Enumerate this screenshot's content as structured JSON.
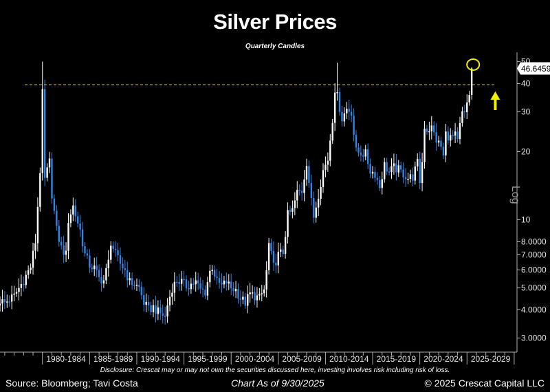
{
  "colors": {
    "background": "#000000",
    "up_candle": "#ffffff",
    "down_candle": "#2e86e8",
    "threshold_line": "#e8e400",
    "highlight": "#f2ee00",
    "axis": "#b0b0b0",
    "last_label_bg": "#ffffff"
  },
  "header": {
    "title": "Silver Prices",
    "subtitle": "Quarterly Candles"
  },
  "footer": {
    "disclosure": "Disclosure: Crescat may or may not own the securities discussed here, investing involves risk including risk of loss.",
    "source": "Source: Bloomberg; Tavi Costa",
    "as_of": "Chart As of 9/30/2025",
    "copyright": "© 2025 Crescat Capital LLC"
  },
  "chart_data": {
    "type": "candlestick",
    "title": "Silver Prices",
    "subtitle": "Quarterly Candles",
    "y_scale": "log",
    "y_axis_label": "Log",
    "ylim": [
      2.6,
      52
    ],
    "y_ticks": [
      {
        "value": 50,
        "label": "50"
      },
      {
        "value": 40,
        "label": "40"
      },
      {
        "value": 30,
        "label": "30"
      },
      {
        "value": 20,
        "label": "20"
      },
      {
        "value": 10,
        "label": "10"
      },
      {
        "value": 8,
        "label": "8.0000"
      },
      {
        "value": 7,
        "label": "7.0000"
      },
      {
        "value": 6,
        "label": "6.0000"
      },
      {
        "value": 5,
        "label": "5.0000"
      },
      {
        "value": 4,
        "label": "4.0000"
      },
      {
        "value": 3,
        "label": "3.0000"
      }
    ],
    "x_range": [
      1975.5,
      2030.3
    ],
    "x_period_labels": [
      {
        "start": 1980,
        "label": "1980-1984"
      },
      {
        "start": 1985,
        "label": "1985-1989"
      },
      {
        "start": 1990,
        "label": "1990-1994"
      },
      {
        "start": 1995,
        "label": "1995-1999"
      },
      {
        "start": 2000,
        "label": "2000-2004"
      },
      {
        "start": 2005,
        "label": "2005-2009"
      },
      {
        "start": 2010,
        "label": "2010-2014"
      },
      {
        "start": 2015,
        "label": "2015-2019"
      },
      {
        "start": 2020,
        "label": "2020-2024"
      },
      {
        "start": 2025,
        "label": "2025-2029"
      }
    ],
    "last_price": 46.6459,
    "last_price_label": "46.6459",
    "horizontal_line": {
      "value": 39.5,
      "style": "dashed"
    },
    "highlight_circle_at": {
      "x": 2025.65,
      "y": 48.5
    },
    "up_arrow_at": {
      "x": 2028.0
    },
    "close_path": [
      [
        1975.5,
        4.4
      ],
      [
        1976.0,
        4.3
      ],
      [
        1977.0,
        4.6
      ],
      [
        1978.0,
        5.4
      ],
      [
        1978.75,
        6.2
      ],
      [
        1979.25,
        8.0
      ],
      [
        1979.75,
        16.5
      ],
      [
        1980.0,
        36.0
      ],
      [
        1980.25,
        15.0
      ],
      [
        1980.75,
        18.0
      ],
      [
        1981.0,
        13.0
      ],
      [
        1981.5,
        9.0
      ],
      [
        1982.0,
        7.5
      ],
      [
        1982.5,
        7.0
      ],
      [
        1982.75,
        10.0
      ],
      [
        1983.25,
        11.5
      ],
      [
        1983.5,
        10.5
      ],
      [
        1984.0,
        9.0
      ],
      [
        1984.5,
        7.0
      ],
      [
        1985.0,
        6.3
      ],
      [
        1985.5,
        6.1
      ],
      [
        1986.0,
        5.5
      ],
      [
        1986.5,
        5.4
      ],
      [
        1987.0,
        6.5
      ],
      [
        1987.25,
        8.0
      ],
      [
        1987.75,
        7.0
      ],
      [
        1988.25,
        6.4
      ],
      [
        1988.75,
        6.0
      ],
      [
        1989.25,
        5.3
      ],
      [
        1989.75,
        5.2
      ],
      [
        1990.25,
        5.0
      ],
      [
        1990.75,
        4.3
      ],
      [
        1991.25,
        4.0
      ],
      [
        1991.75,
        4.1
      ],
      [
        1992.25,
        3.9
      ],
      [
        1992.75,
        3.8
      ],
      [
        1993.0,
        3.7
      ],
      [
        1993.25,
        4.2
      ],
      [
        1993.75,
        5.0
      ],
      [
        1994.25,
        5.4
      ],
      [
        1994.75,
        5.3
      ],
      [
        1995.25,
        5.1
      ],
      [
        1995.75,
        5.2
      ],
      [
        1996.25,
        5.3
      ],
      [
        1996.75,
        4.9
      ],
      [
        1997.25,
        4.8
      ],
      [
        1997.75,
        5.9
      ],
      [
        1998.0,
        6.2
      ],
      [
        1998.5,
        5.3
      ],
      [
        1999.0,
        5.1
      ],
      [
        1999.5,
        5.3
      ],
      [
        2000.0,
        5.0
      ],
      [
        2000.5,
        4.9
      ],
      [
        2001.0,
        4.5
      ],
      [
        2001.5,
        4.3
      ],
      [
        2002.0,
        4.7
      ],
      [
        2002.5,
        4.6
      ],
      [
        2003.0,
        4.5
      ],
      [
        2003.5,
        4.9
      ],
      [
        2003.75,
        5.9
      ],
      [
        2004.0,
        7.8
      ],
      [
        2004.5,
        6.2
      ],
      [
        2005.0,
        7.0
      ],
      [
        2005.5,
        7.2
      ],
      [
        2006.0,
        10.5
      ],
      [
        2006.5,
        11.0
      ],
      [
        2007.0,
        13.2
      ],
      [
        2007.5,
        13.4
      ],
      [
        2008.0,
        18.0
      ],
      [
        2008.5,
        12.0
      ],
      [
        2008.75,
        10.3
      ],
      [
        2009.25,
        13.0
      ],
      [
        2009.75,
        16.5
      ],
      [
        2010.25,
        18.5
      ],
      [
        2010.75,
        28.0
      ],
      [
        2011.0,
        38.0
      ],
      [
        2011.25,
        35.0
      ],
      [
        2011.75,
        28.0
      ],
      [
        2012.25,
        31.0
      ],
      [
        2012.75,
        30.0
      ],
      [
        2013.0,
        24.0
      ],
      [
        2013.25,
        20.0
      ],
      [
        2013.75,
        19.8
      ],
      [
        2014.25,
        19.5
      ],
      [
        2014.75,
        16.5
      ],
      [
        2015.25,
        16.0
      ],
      [
        2015.75,
        14.0
      ],
      [
        2016.25,
        17.5
      ],
      [
        2016.75,
        16.2
      ],
      [
        2017.25,
        17.0
      ],
      [
        2017.75,
        16.6
      ],
      [
        2018.25,
        16.0
      ],
      [
        2018.75,
        15.3
      ],
      [
        2019.25,
        15.5
      ],
      [
        2019.75,
        17.8
      ],
      [
        2020.0,
        14.8
      ],
      [
        2020.25,
        18.0
      ],
      [
        2020.5,
        26.0
      ],
      [
        2020.75,
        25.0
      ],
      [
        2021.25,
        25.5
      ],
      [
        2021.75,
        22.5
      ],
      [
        2022.25,
        21.0
      ],
      [
        2022.5,
        19.0
      ],
      [
        2022.75,
        24.0
      ],
      [
        2023.25,
        23.0
      ],
      [
        2023.75,
        23.5
      ],
      [
        2024.0,
        22.0
      ],
      [
        2024.25,
        26.0
      ],
      [
        2024.5,
        29.5
      ],
      [
        2024.75,
        29.0
      ],
      [
        2025.0,
        32.8
      ],
      [
        2025.25,
        36.0
      ],
      [
        2025.5,
        46.6459
      ]
    ]
  }
}
